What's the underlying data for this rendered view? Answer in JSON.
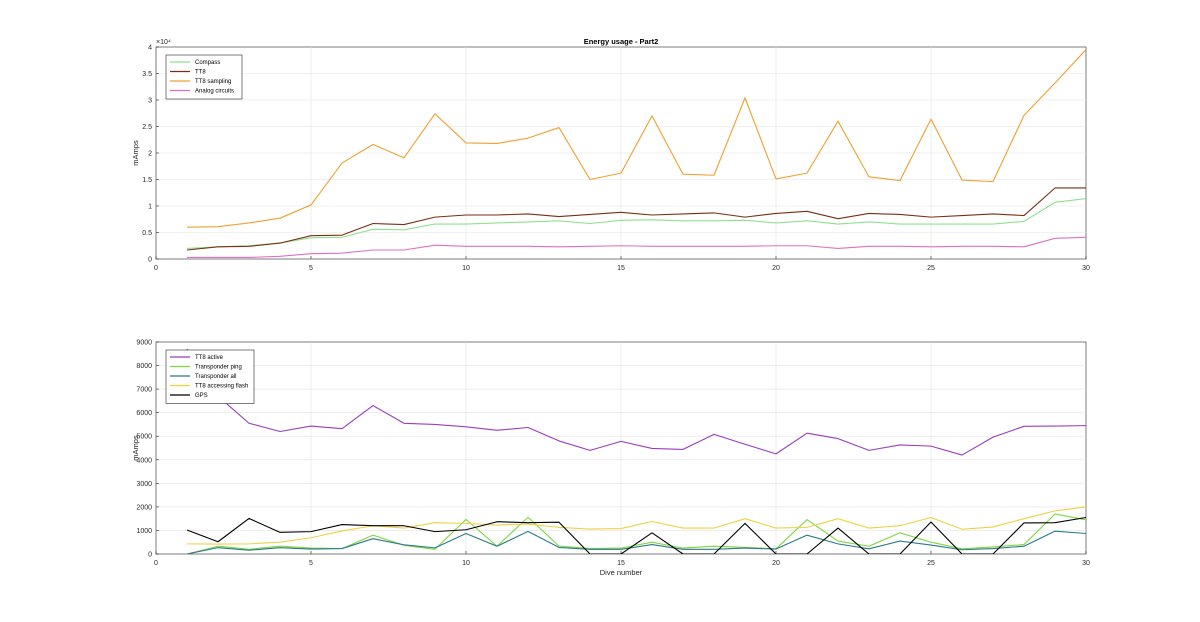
{
  "chart_data": [
    {
      "type": "line",
      "title": "Energy usage - Part2",
      "xlabel": "",
      "ylabel": "mAmps",
      "exponent_label": "×10⁴",
      "xlim": [
        0,
        30
      ],
      "ylim": [
        0,
        4
      ],
      "x_ticks": [
        "0",
        "5",
        "10",
        "15",
        "20",
        "25",
        "30"
      ],
      "y_ticks": [
        "0",
        "0.5",
        "1",
        "1.5",
        "2",
        "2.5",
        "3",
        "3.5",
        "4"
      ],
      "grid": true,
      "legend_position": "top-left",
      "x": [
        1,
        2,
        3,
        4,
        5,
        6,
        7,
        8,
        9,
        10,
        11,
        12,
        13,
        14,
        15,
        16,
        17,
        18,
        19,
        20,
        21,
        22,
        23,
        24,
        25,
        26,
        27,
        28,
        29,
        30
      ],
      "series": [
        {
          "name": "Compass",
          "color": "#8fe08f",
          "values": [
            0.2,
            0.23,
            0.25,
            0.3,
            0.4,
            0.41,
            0.56,
            0.55,
            0.66,
            0.66,
            0.68,
            0.7,
            0.72,
            0.67,
            0.73,
            0.74,
            0.72,
            0.72,
            0.73,
            0.68,
            0.72,
            0.66,
            0.7,
            0.66,
            0.66,
            0.66,
            0.66,
            0.71,
            1.07,
            1.14
          ]
        },
        {
          "name": "TT8",
          "color": "#7a2e14",
          "values": [
            0.17,
            0.23,
            0.24,
            0.3,
            0.44,
            0.45,
            0.67,
            0.65,
            0.79,
            0.83,
            0.83,
            0.85,
            0.8,
            0.84,
            0.88,
            0.83,
            0.85,
            0.87,
            0.79,
            0.86,
            0.9,
            0.76,
            0.86,
            0.84,
            0.79,
            0.82,
            0.85,
            0.82,
            1.34,
            1.34
          ]
        },
        {
          "name": "TT8 sampling",
          "color": "#f0a030",
          "values": [
            0.6,
            0.61,
            0.68,
            0.77,
            1.02,
            1.81,
            2.16,
            1.91,
            2.74,
            2.19,
            2.18,
            2.28,
            2.48,
            1.5,
            1.62,
            2.7,
            1.6,
            1.58,
            3.04,
            1.51,
            1.62,
            2.6,
            1.55,
            1.48,
            2.64,
            1.49,
            1.46,
            2.71,
            3.32,
            3.95
          ]
        },
        {
          "name": "Analog circuits",
          "color": "#e070c0",
          "values": [
            0.03,
            0.03,
            0.03,
            0.05,
            0.1,
            0.11,
            0.17,
            0.17,
            0.26,
            0.24,
            0.24,
            0.24,
            0.23,
            0.24,
            0.25,
            0.24,
            0.24,
            0.24,
            0.24,
            0.25,
            0.25,
            0.2,
            0.24,
            0.24,
            0.23,
            0.24,
            0.24,
            0.23,
            0.39,
            0.41
          ]
        }
      ]
    },
    {
      "type": "line",
      "title": "",
      "xlabel": "Dive number",
      "ylabel": "mAmps",
      "xlim": [
        0,
        30
      ],
      "ylim": [
        0,
        9000
      ],
      "x_ticks": [
        "0",
        "5",
        "10",
        "15",
        "20",
        "25",
        "30"
      ],
      "y_ticks": [
        "0",
        "1000",
        "2000",
        "3000",
        "4000",
        "5000",
        "6000",
        "7000",
        "8000",
        "9000"
      ],
      "grid": true,
      "legend_position": "top-left",
      "x": [
        1,
        2,
        3,
        4,
        5,
        6,
        7,
        8,
        9,
        10,
        11,
        12,
        13,
        14,
        15,
        16,
        17,
        18,
        19,
        20,
        21,
        22,
        23,
        24,
        25,
        26,
        27,
        28,
        29,
        30
      ],
      "series": [
        {
          "name": "TT8 active",
          "color": "#9a3cc0",
          "values": [
            8700,
            6700,
            5550,
            5200,
            5430,
            5320,
            6300,
            5550,
            5500,
            5400,
            5250,
            5370,
            4800,
            4400,
            4780,
            4480,
            4440,
            5080,
            4660,
            4250,
            5130,
            4900,
            4400,
            4630,
            4580,
            4200,
            4960,
            5420,
            5430,
            5450
          ]
        },
        {
          "name": "Transponder ping",
          "color": "#7cd83c",
          "values": [
            0,
            330,
            200,
            330,
            250,
            230,
            800,
            370,
            200,
            1470,
            330,
            1560,
            340,
            230,
            250,
            500,
            250,
            330,
            280,
            220,
            1460,
            550,
            330,
            900,
            500,
            220,
            300,
            400,
            1700,
            1450
          ]
        },
        {
          "name": "Transponder all",
          "color": "#2a7a8c",
          "values": [
            0,
            270,
            160,
            270,
            210,
            230,
            650,
            390,
            260,
            870,
            330,
            960,
            280,
            200,
            200,
            400,
            200,
            200,
            250,
            210,
            800,
            430,
            220,
            550,
            380,
            180,
            230,
            330,
            970,
            870
          ]
        },
        {
          "name": "TT8 accessing flash",
          "color": "#f0d040",
          "values": [
            430,
            420,
            430,
            500,
            690,
            980,
            1200,
            1100,
            1330,
            1300,
            1230,
            1270,
            1130,
            1060,
            1080,
            1380,
            1100,
            1100,
            1500,
            1100,
            1130,
            1500,
            1100,
            1200,
            1550,
            1050,
            1150,
            1500,
            1830,
            2000
          ]
        },
        {
          "name": "GPS",
          "color": "#000000",
          "values": [
            1020,
            520,
            1510,
            920,
            950,
            1250,
            1200,
            1200,
            950,
            1030,
            1370,
            1330,
            1350,
            0,
            0,
            900,
            0,
            0,
            1300,
            0,
            0,
            1100,
            0,
            0,
            1360,
            0,
            0,
            1320,
            1330,
            1550
          ]
        }
      ]
    }
  ]
}
